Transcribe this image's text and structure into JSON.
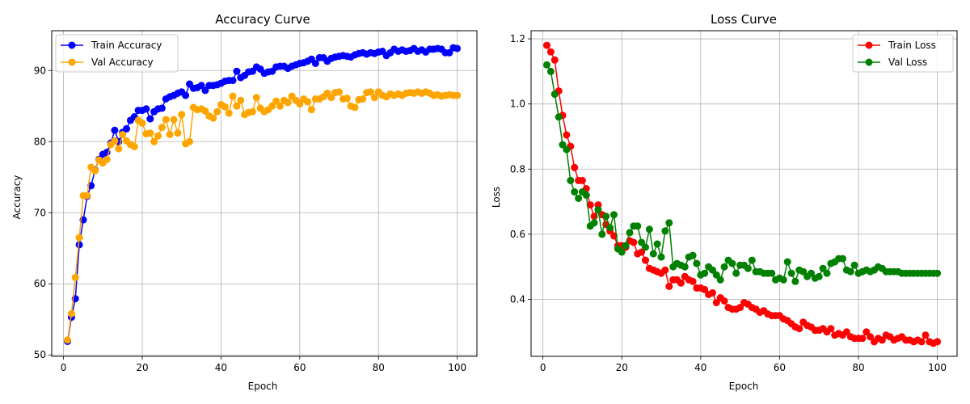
{
  "chart_data": [
    {
      "type": "line",
      "title": "Accuracy Curve",
      "xlabel": "Epoch",
      "ylabel": "Accuracy",
      "xlim": [
        -3,
        105
      ],
      "ylim": [
        49.8,
        95.6
      ],
      "xticks": [
        0,
        20,
        40,
        60,
        80,
        100
      ],
      "yticks": [
        50,
        60,
        70,
        80,
        90
      ],
      "grid": true,
      "legend_position": "top-left",
      "x": [
        1,
        2,
        3,
        4,
        5,
        6,
        7,
        8,
        9,
        10,
        11,
        12,
        13,
        14,
        15,
        16,
        17,
        18,
        19,
        20,
        21,
        22,
        23,
        24,
        25,
        26,
        27,
        28,
        29,
        30,
        31,
        32,
        33,
        34,
        35,
        36,
        37,
        38,
        39,
        40,
        41,
        42,
        43,
        44,
        45,
        46,
        47,
        48,
        49,
        50,
        51,
        52,
        53,
        54,
        55,
        56,
        57,
        58,
        59,
        60,
        61,
        62,
        63,
        64,
        65,
        66,
        67,
        68,
        69,
        70,
        71,
        72,
        73,
        74,
        75,
        76,
        77,
        78,
        79,
        80,
        81,
        82,
        83,
        84,
        85,
        86,
        87,
        88,
        89,
        90,
        91,
        92,
        93,
        94,
        95,
        96,
        97,
        98,
        99,
        100
      ],
      "series": [
        {
          "name": "Train Accuracy",
          "color": "#0000ff",
          "values": [
            51.9,
            55.3,
            57.9,
            65.5,
            69.0,
            72.3,
            73.8,
            76.0,
            77.5,
            78.2,
            78.5,
            79.8,
            81.6,
            80.0,
            81.3,
            81.8,
            83.0,
            83.5,
            84.4,
            84.4,
            84.6,
            83.2,
            84.2,
            84.6,
            84.7,
            86.0,
            86.3,
            86.5,
            86.8,
            87.0,
            86.5,
            88.1,
            87.5,
            87.6,
            87.9,
            87.2,
            87.9,
            87.9,
            88.0,
            88.2,
            88.5,
            88.6,
            88.6,
            89.9,
            89.0,
            89.3,
            89.8,
            89.9,
            90.5,
            90.2,
            89.6,
            89.8,
            89.9,
            90.5,
            90.6,
            90.6,
            90.3,
            90.6,
            90.8,
            91.0,
            91.1,
            91.3,
            91.6,
            91.0,
            91.8,
            91.8,
            91.3,
            91.7,
            91.9,
            92.0,
            92.1,
            92.0,
            91.9,
            92.2,
            92.4,
            92.5,
            92.3,
            92.5,
            92.4,
            92.6,
            92.7,
            92.1,
            92.5,
            93.0,
            92.7,
            92.9,
            92.7,
            92.8,
            93.1,
            92.7,
            92.9,
            92.6,
            93.0,
            93.0,
            93.1,
            93.0,
            92.5,
            92.5,
            93.2,
            93.1
          ]
        },
        {
          "name": "Val Accuracy",
          "color": "#ffa500",
          "values": [
            52.1,
            55.8,
            60.9,
            66.5,
            72.4,
            72.4,
            76.4,
            75.9,
            77.4,
            77.0,
            77.5,
            79.6,
            80.1,
            79.0,
            81.0,
            80.1,
            79.6,
            79.3,
            83.0,
            82.6,
            81.1,
            81.2,
            80.0,
            80.8,
            82.0,
            83.1,
            81.0,
            83.1,
            81.2,
            83.8,
            79.7,
            80.0,
            84.8,
            84.5,
            84.6,
            84.3,
            83.6,
            83.3,
            84.2,
            85.2,
            84.9,
            84.0,
            86.4,
            85.0,
            85.8,
            83.8,
            84.1,
            84.2,
            86.2,
            84.7,
            84.2,
            84.5,
            85.0,
            85.7,
            85.0,
            85.8,
            85.5,
            86.4,
            85.8,
            85.3,
            86.0,
            85.6,
            84.5,
            86.0,
            86.0,
            86.3,
            86.8,
            86.2,
            86.9,
            87.0,
            86.0,
            86.1,
            85.0,
            84.8,
            85.9,
            86.0,
            86.9,
            87.0,
            86.2,
            87.0,
            86.5,
            86.3,
            86.7,
            86.5,
            86.7,
            86.5,
            86.8,
            86.9,
            86.8,
            87.0,
            86.8,
            87.0,
            86.8,
            86.5,
            86.6,
            86.4,
            86.5,
            86.6,
            86.5,
            86.5
          ]
        }
      ]
    },
    {
      "type": "line",
      "title": "Loss Curve",
      "xlabel": "Epoch",
      "ylabel": "Loss",
      "xlim": [
        -3,
        105
      ],
      "ylim": [
        0.225,
        1.225
      ],
      "xticks": [
        0,
        20,
        40,
        60,
        80,
        100
      ],
      "yticks": [
        0.4,
        0.6,
        0.8,
        1.0,
        1.2
      ],
      "ytick_labels": [
        "0.4",
        "0.6",
        "0.8",
        "1.0",
        "1.2"
      ],
      "grid": true,
      "legend_position": "top-right",
      "x": [
        1,
        2,
        3,
        4,
        5,
        6,
        7,
        8,
        9,
        10,
        11,
        12,
        13,
        14,
        15,
        16,
        17,
        18,
        19,
        20,
        21,
        22,
        23,
        24,
        25,
        26,
        27,
        28,
        29,
        30,
        31,
        32,
        33,
        34,
        35,
        36,
        37,
        38,
        39,
        40,
        41,
        42,
        43,
        44,
        45,
        46,
        47,
        48,
        49,
        50,
        51,
        52,
        53,
        54,
        55,
        56,
        57,
        58,
        59,
        60,
        61,
        62,
        63,
        64,
        65,
        66,
        67,
        68,
        69,
        70,
        71,
        72,
        73,
        74,
        75,
        76,
        77,
        78,
        79,
        80,
        81,
        82,
        83,
        84,
        85,
        86,
        87,
        88,
        89,
        90,
        91,
        92,
        93,
        94,
        95,
        96,
        97,
        98,
        99,
        100
      ],
      "series": [
        {
          "name": "Train Loss",
          "color": "#ff0000",
          "values": [
            1.18,
            1.16,
            1.135,
            1.04,
            0.965,
            0.905,
            0.87,
            0.805,
            0.765,
            0.765,
            0.74,
            0.69,
            0.655,
            0.69,
            0.66,
            0.63,
            0.61,
            0.595,
            0.565,
            0.565,
            0.56,
            0.58,
            0.575,
            0.54,
            0.545,
            0.52,
            0.495,
            0.49,
            0.485,
            0.48,
            0.49,
            0.44,
            0.46,
            0.46,
            0.45,
            0.47,
            0.46,
            0.455,
            0.435,
            0.435,
            0.43,
            0.415,
            0.42,
            0.39,
            0.405,
            0.395,
            0.375,
            0.37,
            0.37,
            0.375,
            0.39,
            0.385,
            0.375,
            0.37,
            0.36,
            0.365,
            0.355,
            0.35,
            0.35,
            0.35,
            0.34,
            0.335,
            0.325,
            0.315,
            0.31,
            0.33,
            0.32,
            0.315,
            0.305,
            0.305,
            0.31,
            0.3,
            0.31,
            0.29,
            0.295,
            0.29,
            0.3,
            0.285,
            0.28,
            0.28,
            0.28,
            0.3,
            0.285,
            0.27,
            0.28,
            0.275,
            0.29,
            0.285,
            0.275,
            0.28,
            0.285,
            0.275,
            0.275,
            0.27,
            0.275,
            0.27,
            0.29,
            0.27,
            0.265,
            0.27
          ]
        },
        {
          "name": "Val Loss",
          "color": "#008000",
          "values": [
            1.12,
            1.1,
            1.03,
            0.96,
            0.875,
            0.86,
            0.765,
            0.73,
            0.71,
            0.73,
            0.72,
            0.625,
            0.635,
            0.675,
            0.6,
            0.655,
            0.62,
            0.66,
            0.555,
            0.545,
            0.565,
            0.605,
            0.625,
            0.625,
            0.575,
            0.56,
            0.615,
            0.54,
            0.57,
            0.53,
            0.61,
            0.635,
            0.5,
            0.51,
            0.505,
            0.5,
            0.53,
            0.535,
            0.51,
            0.475,
            0.48,
            0.5,
            0.49,
            0.475,
            0.46,
            0.5,
            0.52,
            0.51,
            0.48,
            0.505,
            0.505,
            0.495,
            0.52,
            0.485,
            0.485,
            0.48,
            0.48,
            0.48,
            0.46,
            0.465,
            0.46,
            0.515,
            0.48,
            0.455,
            0.49,
            0.485,
            0.47,
            0.48,
            0.465,
            0.47,
            0.495,
            0.48,
            0.51,
            0.515,
            0.525,
            0.525,
            0.49,
            0.485,
            0.505,
            0.48,
            0.485,
            0.49,
            0.485,
            0.49,
            0.5,
            0.495,
            0.485,
            0.485,
            0.485,
            0.485,
            0.48,
            0.48,
            0.48,
            0.48,
            0.48,
            0.48,
            0.48,
            0.48,
            0.48,
            0.48
          ]
        }
      ]
    }
  ]
}
